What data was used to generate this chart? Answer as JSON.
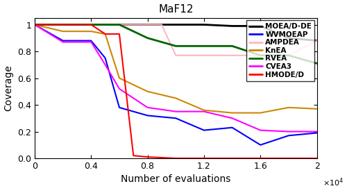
{
  "title": "MaF12",
  "xlabel": "Number of evaluations",
  "ylabel": "Coverage",
  "xlim": [
    0,
    20000
  ],
  "ylim": [
    0,
    1.05
  ],
  "algorithms": {
    "MOEA/D-DE": {
      "color": "#000000",
      "linewidth": 2.0,
      "x": [
        0,
        2000,
        4000,
        6000,
        8000,
        10000,
        12000,
        14000,
        16000,
        18000,
        20000
      ],
      "y": [
        1.0,
        1.0,
        1.0,
        1.0,
        1.0,
        1.0,
        1.0,
        0.99,
        0.99,
        0.9,
        0.88
      ]
    },
    "WVMOEAP": {
      "color": "#0000FF",
      "linewidth": 1.5,
      "x": [
        0,
        2000,
        4000,
        5000,
        6000,
        8000,
        10000,
        12000,
        14000,
        16000,
        18000,
        20000
      ],
      "y": [
        1.0,
        0.88,
        0.88,
        0.75,
        0.38,
        0.32,
        0.3,
        0.21,
        0.23,
        0.1,
        0.17,
        0.19
      ]
    },
    "AMPDEA": {
      "color": "#FFB6C1",
      "linewidth": 1.5,
      "x": [
        0,
        4000,
        6000,
        8000,
        9000,
        10000,
        12000,
        14000,
        16000,
        18000,
        20000
      ],
      "y": [
        1.0,
        1.0,
        1.0,
        1.0,
        1.0,
        0.77,
        0.77,
        0.77,
        0.77,
        0.77,
        0.88
      ]
    },
    "KnEA": {
      "color": "#CC8800",
      "linewidth": 1.5,
      "x": [
        0,
        2000,
        4000,
        5000,
        6000,
        8000,
        10000,
        12000,
        14000,
        16000,
        18000,
        20000
      ],
      "y": [
        1.0,
        0.95,
        0.95,
        0.93,
        0.6,
        0.5,
        0.45,
        0.36,
        0.34,
        0.34,
        0.38,
        0.37
      ]
    },
    "RVEA": {
      "color": "#006400",
      "linewidth": 2.0,
      "x": [
        0,
        2000,
        4000,
        6000,
        8000,
        10000,
        12000,
        14000,
        16000,
        18000,
        20000
      ],
      "y": [
        1.0,
        1.0,
        1.0,
        1.0,
        0.9,
        0.84,
        0.84,
        0.84,
        0.77,
        0.77,
        0.71
      ]
    },
    "CVEA3": {
      "color": "#FF00FF",
      "linewidth": 1.5,
      "x": [
        0,
        2000,
        4000,
        5000,
        6000,
        8000,
        10000,
        12000,
        14000,
        16000,
        18000,
        20000
      ],
      "y": [
        1.0,
        0.87,
        0.87,
        0.7,
        0.52,
        0.38,
        0.35,
        0.35,
        0.3,
        0.21,
        0.2,
        0.2
      ]
    },
    "HMODE/D": {
      "color": "#FF0000",
      "linewidth": 1.5,
      "x": [
        0,
        2000,
        4000,
        5000,
        6000,
        7000,
        8000,
        10000,
        12000,
        14000,
        16000,
        18000,
        20000
      ],
      "y": [
        1.0,
        1.0,
        1.0,
        0.93,
        0.93,
        0.02,
        0.01,
        0.0,
        0.0,
        0.0,
        0.0,
        0.0,
        0.0
      ]
    }
  },
  "legend_order": [
    "MOEA/D-DE",
    "WVMOEAP",
    "AMPDEA",
    "KnEA",
    "RVEA",
    "CVEA3",
    "HMODE/D"
  ],
  "xticks": [
    0,
    4000,
    8000,
    12000,
    16000,
    20000
  ],
  "xtick_labels": [
    "0",
    "0.4",
    "0.8",
    "1.2",
    "1.6",
    "2"
  ],
  "yticks": [
    0,
    0.2,
    0.4,
    0.6,
    0.8,
    1.0
  ],
  "figwidth": 5.0,
  "figheight": 2.78,
  "dpi": 100
}
